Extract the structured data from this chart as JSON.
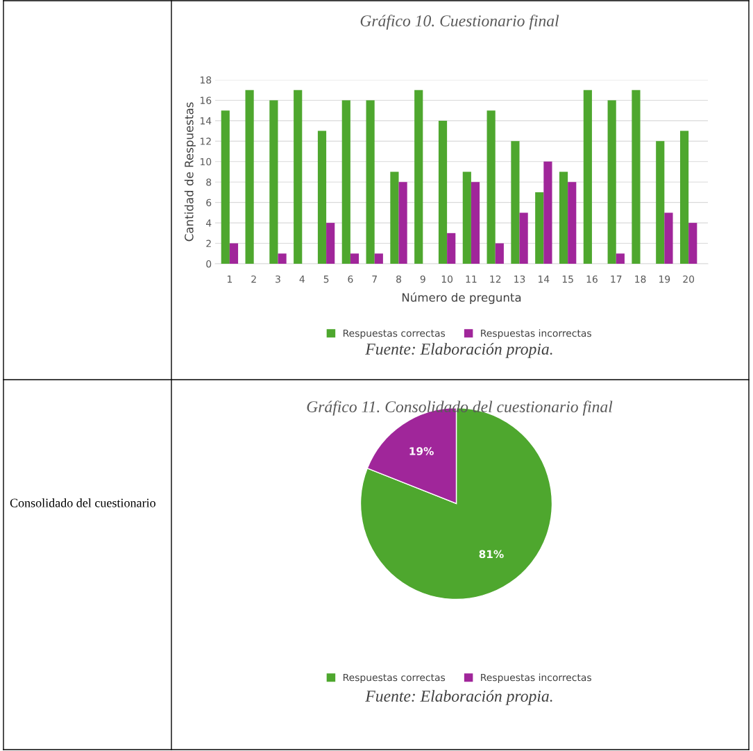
{
  "chart_data": [
    {
      "type": "bar",
      "title": "Gráfico 10. Cuestionario final",
      "xlabel": "Número de pregunta",
      "ylabel": "Cantidad de Respuestas",
      "categories": [
        "1",
        "2",
        "3",
        "4",
        "5",
        "6",
        "7",
        "8",
        "9",
        "10",
        "11",
        "12",
        "13",
        "14",
        "15",
        "16",
        "17",
        "18",
        "19",
        "20"
      ],
      "series": [
        {
          "name": "Respuestas correctas",
          "color": "#4ea72e",
          "values": [
            15,
            17,
            16,
            17,
            13,
            16,
            16,
            9,
            17,
            14,
            9,
            15,
            12,
            7,
            9,
            17,
            16,
            17,
            12,
            13
          ]
        },
        {
          "name": "Respuestas incorrectas",
          "color": "#a0269a",
          "values": [
            2,
            0,
            1,
            0,
            4,
            1,
            1,
            8,
            0,
            3,
            8,
            2,
            5,
            10,
            8,
            0,
            1,
            0,
            5,
            4
          ]
        }
      ],
      "ylim": [
        0,
        18
      ],
      "yticks": [
        0,
        2,
        4,
        6,
        8,
        10,
        12,
        14,
        16,
        18
      ],
      "grid": "y",
      "legend": "bottom",
      "annotations": [
        "Fuente: Elaboración propia."
      ]
    },
    {
      "type": "pie",
      "title": "Gráfico 11. Consolidado del cuestionario final",
      "categories": [
        "Respuestas correctas",
        "Respuestas incorrectas"
      ],
      "values": [
        81,
        19
      ],
      "colors": [
        "#4ea72e",
        "#a0269a"
      ],
      "value_labels": [
        "81%",
        "19%"
      ],
      "legend": "bottom",
      "annotations": [
        "Consolidado del cuestionario",
        "Fuente: Elaboración propia."
      ]
    }
  ]
}
